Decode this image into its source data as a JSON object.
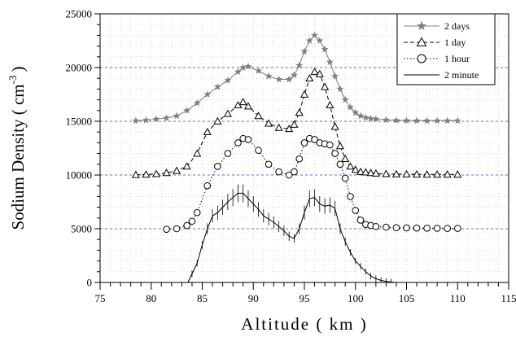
{
  "chart_data": {
    "type": "line",
    "xlabel": "Altitude ( km )",
    "ylabel": "Sodium Density ( cm",
    "ylabel_sup": "-3",
    "ylabel_close": ")",
    "xlim": [
      75,
      115
    ],
    "ylim": [
      0,
      25000
    ],
    "xticks": [
      75,
      80,
      85,
      90,
      95,
      100,
      105,
      110,
      115
    ],
    "yticks": [
      0,
      5000,
      10000,
      15000,
      20000,
      25000
    ],
    "grid": "dotted",
    "reference_lines": [
      5000,
      10000,
      15000,
      20000
    ],
    "legend_position": "top-right",
    "series": [
      {
        "name": "2 days",
        "marker": "star",
        "line": "solid",
        "color": "#808080",
        "x": [
          78.5,
          79.5,
          80.5,
          81.5,
          82.5,
          83.5,
          84.5,
          85.5,
          86.5,
          87.5,
          88.5,
          89.0,
          89.5,
          90.5,
          91.5,
          92.5,
          93.5,
          94.0,
          94.5,
          95.0,
          95.5,
          96.0,
          96.5,
          97.0,
          97.5,
          98.0,
          98.5,
          99.0,
          99.5,
          100.0,
          100.5,
          101.0,
          101.5,
          102.0,
          103.0,
          104.0,
          105.0,
          106.0,
          107.0,
          108.0,
          109.0,
          110.0
        ],
        "values": [
          15050,
          15100,
          15200,
          15300,
          15500,
          16000,
          16700,
          17500,
          18200,
          18800,
          19600,
          20000,
          20100,
          19700,
          19200,
          18900,
          18900,
          19300,
          20200,
          21500,
          22500,
          23000,
          22500,
          21700,
          20500,
          19200,
          18000,
          17000,
          16300,
          15800,
          15500,
          15350,
          15250,
          15200,
          15120,
          15080,
          15060,
          15050,
          15050,
          15050,
          15050,
          15050
        ]
      },
      {
        "name": "1 day",
        "marker": "triangle",
        "line": "dashed",
        "color": "#000000",
        "x": [
          78.5,
          79.5,
          80.5,
          81.5,
          82.5,
          83.5,
          84.5,
          85.5,
          86.5,
          87.5,
          88.5,
          89.0,
          89.5,
          90.5,
          91.5,
          92.5,
          93.5,
          94.0,
          94.5,
          95.0,
          95.5,
          96.0,
          96.5,
          97.0,
          97.5,
          98.0,
          98.5,
          99.0,
          99.5,
          100.0,
          100.5,
          101.0,
          101.5,
          102.0,
          103.0,
          104.0,
          105.0,
          106.0,
          107.0,
          108.0,
          109.0,
          110.0
        ],
        "values": [
          10020,
          10050,
          10100,
          10200,
          10400,
          10800,
          12000,
          14000,
          15000,
          15700,
          16500,
          16800,
          16400,
          15500,
          14800,
          14400,
          14300,
          14700,
          15800,
          17500,
          19000,
          19600,
          19400,
          18200,
          16500,
          14500,
          12700,
          11500,
          10800,
          10500,
          10300,
          10250,
          10200,
          10150,
          10100,
          10080,
          10070,
          10060,
          10050,
          10050,
          10050,
          10050
        ]
      },
      {
        "name": "1 hour",
        "marker": "circle",
        "line": "dotted",
        "color": "#000000",
        "x": [
          81.5,
          82.5,
          83.5,
          84.0,
          84.5,
          85.5,
          86.5,
          87.5,
          88.5,
          89.0,
          89.5,
          90.5,
          91.5,
          92.5,
          93.5,
          94.0,
          94.5,
          95.0,
          95.5,
          96.0,
          96.5,
          97.0,
          97.5,
          98.0,
          98.5,
          99.0,
          99.5,
          100.0,
          100.5,
          101.0,
          101.5,
          102.0,
          103.0,
          104.0,
          105.0,
          106.0,
          107.0,
          108.0,
          109.0,
          110.0
        ],
        "values": [
          4950,
          5000,
          5300,
          5700,
          6500,
          9000,
          10800,
          12000,
          13000,
          13400,
          13300,
          12300,
          11000,
          10300,
          10000,
          10300,
          11500,
          13000,
          13400,
          13300,
          13000,
          12900,
          12800,
          12000,
          11000,
          9700,
          8000,
          6700,
          5800,
          5400,
          5300,
          5200,
          5150,
          5100,
          5080,
          5060,
          5050,
          5040,
          5030,
          5030
        ]
      },
      {
        "name": "2 minute",
        "marker": "errorbar",
        "line": "solid",
        "color": "#000000",
        "x": [
          83.6,
          84.0,
          84.5,
          85.0,
          85.5,
          86.0,
          86.5,
          87.0,
          87.5,
          88.0,
          88.5,
          89.0,
          89.5,
          90.0,
          90.5,
          91.0,
          91.5,
          92.0,
          92.5,
          93.0,
          93.5,
          94.0,
          94.5,
          95.0,
          95.5,
          96.0,
          96.5,
          97.0,
          97.5,
          98.0,
          98.5,
          99.0,
          99.5,
          100.0,
          100.5,
          101.0,
          101.5,
          102.0,
          102.5,
          103.0,
          103.5,
          104.0,
          105.0,
          106.0,
          107.0,
          108.0,
          109.0,
          110.0
        ],
        "values": [
          0,
          800,
          1800,
          3500,
          5000,
          6200,
          6500,
          7000,
          7500,
          7900,
          8300,
          8300,
          7800,
          7300,
          6800,
          6200,
          5900,
          5600,
          5200,
          4800,
          4300,
          4100,
          5000,
          6500,
          7800,
          7900,
          7300,
          7100,
          7200,
          6900,
          5000,
          3800,
          2800,
          2000,
          1500,
          1000,
          600,
          350,
          200,
          100,
          40,
          0,
          0,
          0,
          0,
          0,
          0,
          0
        ]
      }
    ]
  }
}
